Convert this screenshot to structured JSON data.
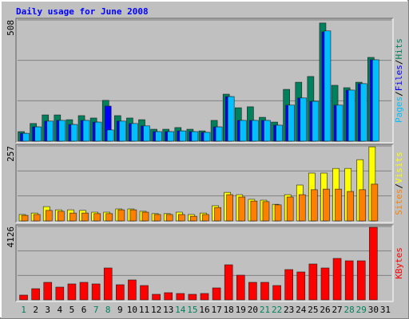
{
  "chart_data": {
    "type": "bar",
    "title": "Daily usage for June 2008",
    "categories": [
      "1",
      "2",
      "3",
      "4",
      "5",
      "6",
      "7",
      "8",
      "9",
      "10",
      "11",
      "12",
      "13",
      "14",
      "15",
      "16",
      "17",
      "18",
      "19",
      "20",
      "21",
      "22",
      "23",
      "24",
      "25",
      "26",
      "27",
      "28",
      "29",
      "30",
      "31"
    ],
    "category_colors": [
      "#00805c",
      "#000000",
      "#000000",
      "#000000",
      "#000000",
      "#000000",
      "#00805c",
      "#00805c",
      "#000000",
      "#000000",
      "#000000",
      "#000000",
      "#000000",
      "#00805c",
      "#00805c",
      "#000000",
      "#000000",
      "#000000",
      "#000000",
      "#000000",
      "#00805c",
      "#00805c",
      "#000000",
      "#000000",
      "#000000",
      "#000000",
      "#000000",
      "#00805c",
      "#00805c",
      "#000000",
      "#000000"
    ],
    "legend_separator": "/",
    "panels": [
      {
        "ylim": [
          0,
          508
        ],
        "yticks": [
          508
        ],
        "series": [
          {
            "name": "Hits",
            "color": "#00805c",
            "values": [
              40,
              74,
              110,
              110,
              90,
              107,
              97,
              171,
              107,
              97,
              90,
              50,
              50,
              57,
              50,
              43,
              87,
              197,
              140,
              144,
              100,
              80,
              217,
              247,
              271,
              495,
              234,
              224,
              247,
              351,
              null
            ]
          },
          {
            "name": "Files",
            "color": "#0000ff",
            "values": [
              33,
              60,
              84,
              87,
              70,
              87,
              80,
              147,
              84,
              74,
              64,
              40,
              40,
              43,
              40,
              37,
              60,
              187,
              87,
              87,
              87,
              67,
              151,
              181,
              167,
              458,
              151,
              214,
              241,
              341,
              null
            ]
          },
          {
            "name": "Pages",
            "color": "#00c0ff",
            "values": [
              33,
              60,
              84,
              87,
              70,
              87,
              80,
              47,
              84,
              74,
              64,
              40,
              40,
              43,
              40,
              37,
              60,
              187,
              87,
              87,
              87,
              67,
              151,
              181,
              167,
              462,
              151,
              214,
              241,
              341,
              null
            ]
          }
        ]
      },
      {
        "ylim": [
          0,
          257
        ],
        "yticks": [
          257
        ],
        "series": [
          {
            "name": "Visits",
            "color": "#ffff00",
            "values": [
              22,
              27,
              49,
              38,
              38,
              36,
              30,
              30,
              41,
              41,
              33,
              25,
              25,
              30,
              22,
              27,
              52,
              98,
              90,
              74,
              71,
              57,
              90,
              123,
              164,
              164,
              180,
              180,
              210,
              254,
              null
            ]
          },
          {
            "name": "Sites",
            "color": "#ff8000",
            "values": [
              19,
              22,
              36,
              33,
              27,
              27,
              25,
              25,
              38,
              38,
              30,
              22,
              22,
              22,
              16,
              22,
              46,
              90,
              82,
              68,
              66,
              55,
              82,
              90,
              107,
              109,
              109,
              101,
              107,
              126,
              null
            ]
          }
        ]
      },
      {
        "ylim": [
          0,
          4126
        ],
        "yticks": [
          4126
        ],
        "series": [
          {
            "name": "KBytes",
            "color": "#ff0000",
            "values": [
              269,
              628,
              987,
              718,
              897,
              987,
              897,
              1794,
              852,
              1121,
              807,
              314,
              404,
              359,
              314,
              359,
              673,
              1973,
              1390,
              987,
              987,
              807,
              1704,
              1570,
              2018,
              1794,
              2332,
              2197,
              2197,
              4081,
              null
            ]
          }
        ]
      }
    ]
  }
}
